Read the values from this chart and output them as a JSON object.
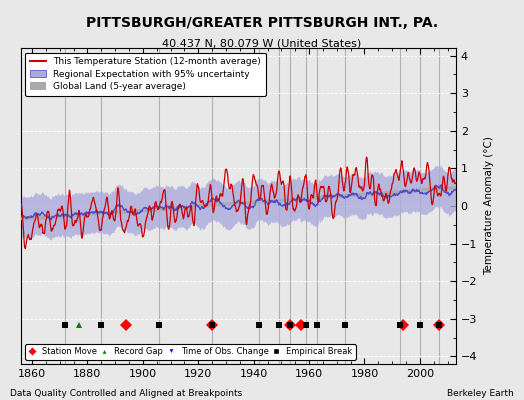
{
  "title": "PITTSBURGH/GREATER PITTSBURGH INT., PA.",
  "subtitle": "40.437 N, 80.079 W (United States)",
  "footer_left": "Data Quality Controlled and Aligned at Breakpoints",
  "footer_right": "Berkeley Earth",
  "ylabel": "Temperature Anomaly (°C)",
  "xlim": [
    1856,
    2013
  ],
  "ylim": [
    -4.2,
    4.2
  ],
  "yticks": [
    -4,
    -3,
    -2,
    -1,
    0,
    1,
    2,
    3,
    4
  ],
  "xticks": [
    1860,
    1880,
    1900,
    1920,
    1940,
    1960,
    1980,
    2000
  ],
  "line_color_station": "#cc0000",
  "line_color_regional": "#4444cc",
  "uncertainty_color": "#aaaadd",
  "global_land_color": "#aaaaaa",
  "background_color": "#e8e8e8",
  "plot_bg_color": "#e8e8e8",
  "grid_color": "#ffffff",
  "vline_color": "#aaaaaa",
  "legend_labels": [
    "This Temperature Station (12-month average)",
    "Regional Expectation with 95% uncertainty",
    "Global Land (5-year average)"
  ],
  "station_move_years": [
    1894,
    1925,
    1953,
    1957,
    1994,
    2007
  ],
  "record_gap_years": [
    1877
  ],
  "obs_change_years": [],
  "empirical_break_years": [
    1872,
    1885,
    1906,
    1925,
    1942,
    1949,
    1953,
    1959,
    1963,
    1973,
    1993,
    2000,
    2007
  ],
  "marker_y": -3.15,
  "marker_size_diamond": 6,
  "marker_size_triangle": 5,
  "marker_size_square": 5
}
